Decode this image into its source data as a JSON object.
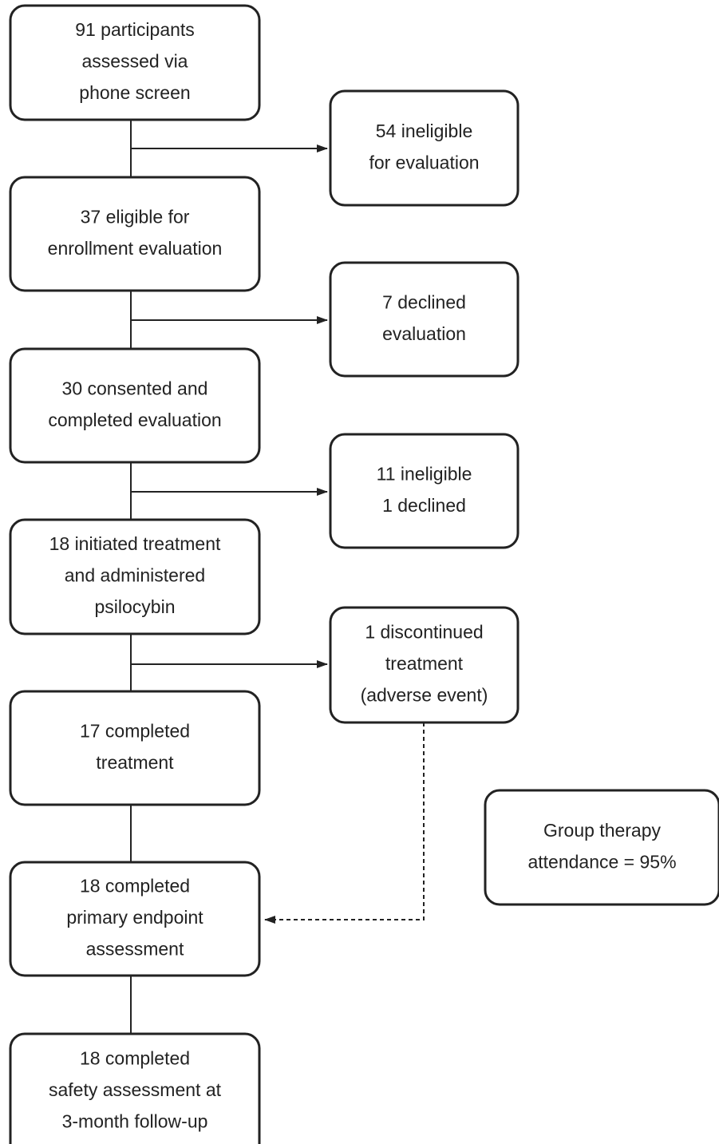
{
  "nodes": [
    {
      "lines": [
        "91 participants",
        "assessed via",
        "phone screen"
      ]
    },
    {
      "lines": [
        "54 ineligible",
        "for evaluation"
      ]
    },
    {
      "lines": [
        "37 eligible for",
        "enrollment evaluation"
      ]
    },
    {
      "lines": [
        "7 declined",
        "evaluation"
      ]
    },
    {
      "lines": [
        "30 consented and",
        "completed evaluation"
      ]
    },
    {
      "lines": [
        "11 ineligible",
        "1 declined"
      ]
    },
    {
      "lines": [
        "18 initiated treatment",
        "and administered",
        "psilocybin"
      ]
    },
    {
      "lines": [
        "1 discontinued",
        "treatment",
        "(adverse event)"
      ]
    },
    {
      "lines": [
        "17 completed",
        "treatment"
      ]
    },
    {
      "lines": [
        "18 completed",
        "primary endpoint",
        "assessment"
      ]
    },
    {
      "lines": [
        "18 completed",
        "safety assessment at",
        "3-month follow-up"
      ]
    },
    {
      "lines": [
        "Group therapy",
        "attendance = 95%"
      ]
    }
  ]
}
